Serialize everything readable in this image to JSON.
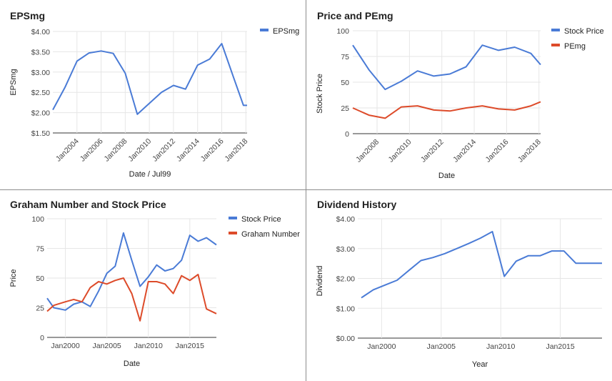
{
  "chart_data": [
    {
      "type": "line",
      "title": "EPSmg",
      "xlabel": "Date / Jul99",
      "ylabel": "EPSmg",
      "y_tick_labels": [
        "$1.50",
        "$2.00",
        "$2.50",
        "$3.00",
        "$3.50",
        "$4.00"
      ],
      "x_tick_labels": [
        "Jan2004",
        "Jan2006",
        "Jan2008",
        "Jan2010",
        "Jan2012",
        "Jan2014",
        "Jan2016",
        "Jan2018"
      ],
      "ylim": [
        1.5,
        4.0
      ],
      "xlim": [
        2002.0,
        2018.1
      ],
      "legend_position": "top-right",
      "grid": true,
      "series": [
        {
          "name": "EPSmg",
          "color": "#4a7bd6",
          "x": [
            2002.0,
            2003.0,
            2004.0,
            2005.0,
            2006.0,
            2007.0,
            2008.0,
            2009.0,
            2010.0,
            2011.0,
            2012.0,
            2013.0,
            2014.0,
            2015.0,
            2016.0,
            2017.0,
            2017.8,
            2018.1
          ],
          "values": [
            2.07,
            2.62,
            3.27,
            3.47,
            3.52,
            3.46,
            2.97,
            1.96,
            2.23,
            2.5,
            2.67,
            2.58,
            3.17,
            3.32,
            3.7,
            2.85,
            2.18,
            2.18
          ]
        }
      ]
    },
    {
      "type": "line",
      "title": "Price and PEmg",
      "xlabel": "Date",
      "ylabel": "Stock Price",
      "y_tick_labels": [
        "0",
        "25",
        "50",
        "75",
        "100"
      ],
      "x_tick_labels": [
        "Jan2008",
        "Jan2010",
        "Jan2012",
        "Jan2014",
        "Jan2016",
        "Jan2018"
      ],
      "ylim": [
        0,
        100
      ],
      "xlim": [
        2006.5,
        2018.1
      ],
      "legend_position": "top-right",
      "grid": true,
      "series": [
        {
          "name": "Stock Price",
          "color": "#4a7bd6",
          "x": [
            2006.5,
            2007.5,
            2008.5,
            2009.5,
            2010.5,
            2011.5,
            2012.5,
            2013.5,
            2014.5,
            2015.5,
            2016.5,
            2017.5,
            2018.1
          ],
          "values": [
            86,
            62,
            43,
            51,
            61,
            56,
            58,
            65,
            86,
            81,
            84,
            78,
            67
          ]
        },
        {
          "name": "PEmg",
          "color": "#dd4b2a",
          "x": [
            2006.5,
            2007.5,
            2008.5,
            2009.5,
            2010.5,
            2011.5,
            2012.5,
            2013.5,
            2014.5,
            2015.5,
            2016.5,
            2017.5,
            2018.1
          ],
          "values": [
            25,
            18,
            15,
            26,
            27,
            23,
            22,
            25,
            27,
            24,
            23,
            27,
            31
          ]
        }
      ]
    },
    {
      "type": "line",
      "title": "Graham Number and Stock Price",
      "xlabel": "Date",
      "ylabel": "Price",
      "y_tick_labels": [
        "0",
        "25",
        "50",
        "75",
        "100"
      ],
      "x_tick_labels": [
        "Jan2000",
        "Jan2005",
        "Jan2010",
        "Jan2015"
      ],
      "ylim": [
        0,
        100
      ],
      "xlim": [
        1997.8,
        2018.2
      ],
      "legend_position": "top-right",
      "grid": true,
      "series": [
        {
          "name": "Stock Price",
          "color": "#4a7bd6",
          "x": [
            1997.8,
            1998.6,
            2000.0,
            2001.0,
            2002.0,
            2003.0,
            2004.0,
            2005.0,
            2006.0,
            2007.0,
            2008.0,
            2009.0,
            2010.0,
            2011.0,
            2012.0,
            2013.0,
            2014.0,
            2015.0,
            2016.0,
            2017.0,
            2018.2
          ],
          "values": [
            33,
            25,
            23,
            28,
            30,
            26,
            39,
            54,
            60,
            88,
            65,
            43,
            51,
            61,
            56,
            58,
            65,
            86,
            81,
            84,
            78
          ]
        },
        {
          "name": "Graham Number",
          "color": "#dd4b2a",
          "x": [
            1997.8,
            1998.6,
            2000.0,
            2001.0,
            2002.0,
            2003.0,
            2004.0,
            2005.0,
            2006.0,
            2007.0,
            2008.0,
            2009.0,
            2010.0,
            2011.0,
            2012.0,
            2013.0,
            2014.0,
            2015.0,
            2016.0,
            2017.0,
            2018.2
          ],
          "values": [
            22,
            27,
            30,
            32,
            30,
            42,
            47,
            45,
            48,
            50,
            37,
            14,
            47,
            47,
            45,
            37,
            52,
            48,
            53,
            24,
            20
          ]
        }
      ]
    },
    {
      "type": "line",
      "title": "Dividend History",
      "xlabel": "Year",
      "ylabel": "Dividend",
      "y_tick_labels": [
        "$0.00",
        "$1.00",
        "$2.00",
        "$3.00",
        "$4.00"
      ],
      "x_tick_labels": [
        "Jan2000",
        "Jan2005",
        "Jan2010",
        "Jan2015"
      ],
      "ylim": [
        0,
        4
      ],
      "xlim": [
        1998.0,
        2018.5
      ],
      "grid": true,
      "series": [
        {
          "color": "#4a7bd6",
          "x": [
            1998.3,
            1999.3,
            2000.3,
            2001.3,
            2002.3,
            2003.3,
            2004.3,
            2005.3,
            2006.3,
            2007.3,
            2008.3,
            2009.3,
            2010.3,
            2011.3,
            2012.3,
            2013.3,
            2014.3,
            2015.3,
            2016.3,
            2017.3,
            2018.5
          ],
          "values": [
            1.35,
            1.62,
            1.78,
            1.94,
            2.27,
            2.6,
            2.7,
            2.83,
            3.0,
            3.17,
            3.35,
            3.57,
            2.07,
            2.58,
            2.76,
            2.76,
            2.92,
            2.92,
            2.51,
            2.51,
            2.51
          ]
        }
      ]
    }
  ]
}
